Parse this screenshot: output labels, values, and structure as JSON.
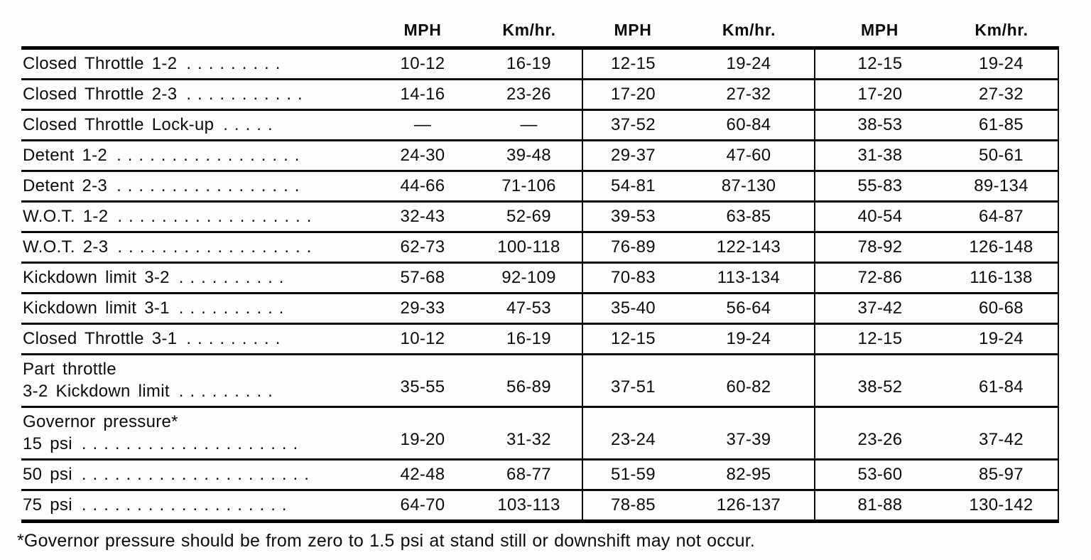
{
  "table": {
    "column_headers": [
      "MPH",
      "Km/hr.",
      "MPH",
      "Km/hr.",
      "MPH",
      "Km/hr."
    ],
    "rows": [
      {
        "label_lines": [
          "Closed Throttle 1-2"
        ],
        "leader": ".........",
        "values": [
          "10-12",
          "16-19",
          "12-15",
          "19-24",
          "12-15",
          "19-24"
        ]
      },
      {
        "label_lines": [
          "Closed Throttle 2-3"
        ],
        "leader": "...........",
        "values": [
          "14-16",
          "23-26",
          "17-20",
          "27-32",
          "17-20",
          "27-32"
        ]
      },
      {
        "label_lines": [
          "Closed Throttle Lock-up"
        ],
        "leader": ".....",
        "values": [
          "—",
          "—",
          "37-52",
          "60-84",
          "38-53",
          "61-85"
        ]
      },
      {
        "label_lines": [
          "Detent 1-2"
        ],
        "leader": ".................",
        "values": [
          "24-30",
          "39-48",
          "29-37",
          "47-60",
          "31-38",
          "50-61"
        ]
      },
      {
        "label_lines": [
          "Detent 2-3"
        ],
        "leader": ".................",
        "values": [
          "44-66",
          "71-106",
          "54-81",
          "87-130",
          "55-83",
          "89-134"
        ]
      },
      {
        "label_lines": [
          "W.O.T. 1-2"
        ],
        "leader": "..................",
        "values": [
          "32-43",
          "52-69",
          "39-53",
          "63-85",
          "40-54",
          "64-87"
        ]
      },
      {
        "label_lines": [
          "W.O.T. 2-3"
        ],
        "leader": "..................",
        "values": [
          "62-73",
          "100-118",
          "76-89",
          "122-143",
          "78-92",
          "126-148"
        ]
      },
      {
        "label_lines": [
          "Kickdown limit 3-2"
        ],
        "leader": "..........",
        "values": [
          "57-68",
          "92-109",
          "70-83",
          "113-134",
          "72-86",
          "116-138"
        ]
      },
      {
        "label_lines": [
          "Kickdown limit 3-1"
        ],
        "leader": "..........",
        "values": [
          "29-33",
          "47-53",
          "35-40",
          "56-64",
          "37-42",
          "60-68"
        ]
      },
      {
        "label_lines": [
          "Closed Throttle 3-1"
        ],
        "leader": ".........",
        "values": [
          "10-12",
          "16-19",
          "12-15",
          "19-24",
          "12-15",
          "19-24"
        ]
      },
      {
        "label_lines": [
          "Part throttle",
          "3-2 Kickdown limit"
        ],
        "leader": ".........",
        "values": [
          "35-55",
          "56-89",
          "37-51",
          "60-82",
          "38-52",
          "61-84"
        ]
      },
      {
        "label_lines": [
          "Governor pressure*",
          "15 psi"
        ],
        "leader": "....................",
        "values": [
          "19-20",
          "31-32",
          "23-24",
          "37-39",
          "23-26",
          "37-42"
        ]
      },
      {
        "label_lines": [
          "50 psi"
        ],
        "leader": ".....................",
        "values": [
          "42-48",
          "68-77",
          "51-59",
          "82-95",
          "53-60",
          "85-97"
        ]
      },
      {
        "label_lines": [
          "75 psi"
        ],
        "leader": "...................",
        "values": [
          "64-70",
          "103-113",
          "78-85",
          "126-137",
          "81-88",
          "130-142"
        ]
      }
    ],
    "footnote": "*Governor pressure should be from zero to 1.5 psi at stand still or downshift may not occur."
  }
}
